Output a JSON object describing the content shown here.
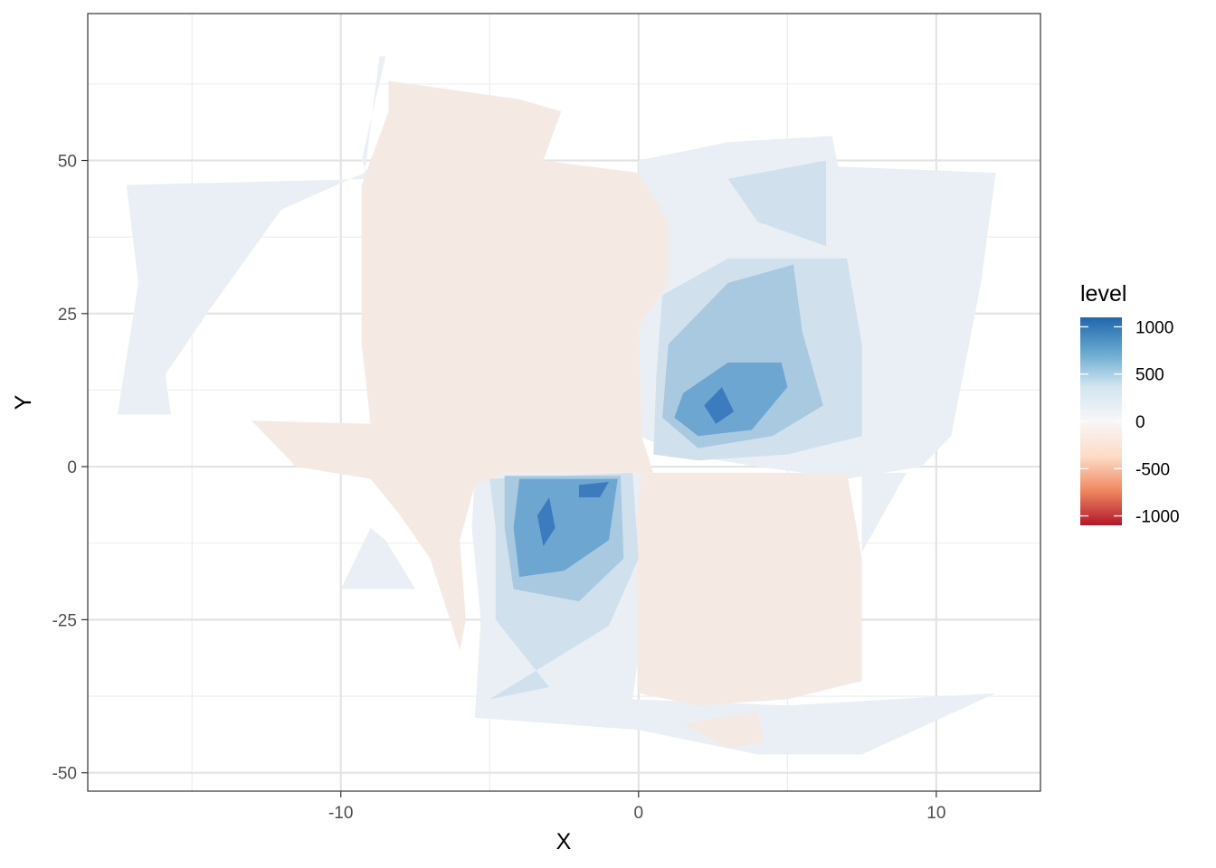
{
  "chart_data": {
    "type": "contour",
    "title": "",
    "xlabel": "X",
    "ylabel": "Y",
    "xlim": [
      -18.5,
      13.5
    ],
    "ylim": [
      -53,
      74
    ],
    "x_ticks": [
      -10,
      0,
      10
    ],
    "x_tick_labels": [
      "-10",
      "0",
      "10"
    ],
    "y_ticks": [
      -50,
      -25,
      0,
      25,
      50
    ],
    "y_tick_labels": [
      "-50",
      "-25",
      "0",
      "25",
      "50"
    ],
    "grid": true,
    "legend": {
      "title": "level",
      "placement": "right",
      "range": [
        -1100,
        1100
      ],
      "breaks": [
        1000,
        500,
        0,
        -500,
        -1000
      ],
      "break_labels": [
        "1000",
        "500",
        "0",
        "-500",
        "-1000"
      ],
      "colors": [
        "#b2182b",
        "#ef8a62",
        "#fddbc7",
        "#f7f7f7",
        "#d1e5f0",
        "#67a9cf",
        "#2166ac"
      ]
    },
    "regions": [
      {
        "name": "level-band-pos-100",
        "level": 100,
        "color": "#e9eff4",
        "points": [
          [
            -17.2,
            46
          ],
          [
            -16.8,
            30
          ],
          [
            -17.5,
            8.5
          ],
          [
            -15.7,
            8.5
          ],
          [
            -15.9,
            15
          ],
          [
            -14.5,
            25
          ],
          [
            -12,
            42
          ],
          [
            -9.2,
            48
          ],
          [
            -8.7,
            67
          ],
          [
            -8.5,
            67
          ],
          [
            -9.3,
            50
          ],
          [
            -9,
            47
          ]
        ]
      },
      {
        "name": "level-band-pos-100",
        "level": 100,
        "color": "#e9eff4",
        "points": [
          [
            0,
            50
          ],
          [
            3,
            53
          ],
          [
            6.5,
            54
          ],
          [
            6.7,
            49
          ],
          [
            12,
            48
          ],
          [
            11.5,
            30
          ],
          [
            10.5,
            5
          ],
          [
            9.5,
            0
          ],
          [
            7,
            -2
          ],
          [
            4,
            0
          ],
          [
            1.5,
            2
          ],
          [
            0,
            5
          ],
          [
            0,
            40
          ]
        ]
      },
      {
        "name": "level-band-pos-100",
        "level": 100,
        "color": "#e9eff4",
        "points": [
          [
            -5.5,
            -1
          ],
          [
            0.2,
            -1
          ],
          [
            0.3,
            -20
          ],
          [
            -0.2,
            -38
          ],
          [
            5,
            -39
          ],
          [
            12,
            -37
          ],
          [
            7.5,
            -47
          ],
          [
            4,
            -47
          ],
          [
            0,
            -43
          ],
          [
            -5.5,
            -41
          ],
          [
            -5.3,
            -25
          ],
          [
            -5.6,
            -10
          ]
        ]
      },
      {
        "name": "level-band-pos-100",
        "level": 100,
        "color": "#e9eff4",
        "points": [
          [
            -10,
            -20
          ],
          [
            -9,
            -10
          ],
          [
            -8.5,
            -12
          ],
          [
            -7.5,
            -20
          ]
        ]
      },
      {
        "name": "level-band-pos-100",
        "level": 100,
        "color": "#e9eff4",
        "points": [
          [
            7.5,
            -1
          ],
          [
            9,
            -1
          ],
          [
            7.5,
            -14
          ]
        ]
      },
      {
        "name": "level-band-neg-100",
        "level": -100,
        "color": "#f5e9e4",
        "points": [
          [
            -8.4,
            63
          ],
          [
            -4,
            60
          ],
          [
            -2.6,
            58
          ],
          [
            -3.2,
            50
          ],
          [
            0,
            48
          ],
          [
            1,
            40
          ],
          [
            1,
            30
          ],
          [
            0,
            23
          ],
          [
            0.1,
            5
          ],
          [
            0.5,
            -1
          ],
          [
            -4.5,
            -1
          ],
          [
            -5.5,
            -3
          ],
          [
            -6,
            -12
          ],
          [
            -5.8,
            -25
          ],
          [
            -6,
            -30
          ],
          [
            -7,
            -15
          ],
          [
            -8,
            -8
          ],
          [
            -9,
            -2
          ],
          [
            -11.5,
            0
          ],
          [
            -13,
            7.5
          ],
          [
            -9,
            7
          ],
          [
            -9.3,
            20
          ],
          [
            -9.3,
            46
          ],
          [
            -8.4,
            58
          ]
        ]
      },
      {
        "name": "level-band-neg-100",
        "level": -100,
        "color": "#f5e9e4",
        "points": [
          [
            0.1,
            -1
          ],
          [
            7,
            -1
          ],
          [
            7.5,
            -15
          ],
          [
            7.5,
            -35
          ],
          [
            5,
            -38
          ],
          [
            2,
            -39
          ],
          [
            0,
            -37
          ],
          [
            -0.1,
            -10
          ]
        ]
      },
      {
        "name": "level-band-neg-100",
        "level": -100,
        "color": "#f5e9e4",
        "points": [
          [
            1.5,
            -42
          ],
          [
            4,
            -40
          ],
          [
            4.2,
            -45
          ],
          [
            3,
            -46
          ]
        ]
      },
      {
        "name": "level-band-pos-250",
        "level": 250,
        "color": "#d0e1ed",
        "points": [
          [
            0.8,
            28
          ],
          [
            3,
            34
          ],
          [
            7,
            34
          ],
          [
            7.5,
            20
          ],
          [
            7.5,
            5
          ],
          [
            5,
            2
          ],
          [
            2,
            1
          ],
          [
            0.5,
            2
          ],
          [
            0.6,
            15
          ]
        ]
      },
      {
        "name": "level-band-pos-250",
        "level": 250,
        "color": "#d0e1ed",
        "points": [
          [
            3,
            47
          ],
          [
            6.3,
            50
          ],
          [
            6.3,
            36
          ],
          [
            4,
            40
          ]
        ]
      },
      {
        "name": "level-band-pos-250",
        "level": 250,
        "color": "#d0e1ed",
        "points": [
          [
            -5,
            -2
          ],
          [
            -0.2,
            -1
          ],
          [
            0,
            -15
          ],
          [
            -1,
            -26
          ],
          [
            -3,
            -32
          ],
          [
            -5,
            -38
          ],
          [
            -3,
            -36
          ],
          [
            -4.8,
            -25
          ],
          [
            -4.8,
            -10
          ]
        ]
      },
      {
        "name": "level-band-pos-450",
        "level": 450,
        "color": "#a9c9e0",
        "points": [
          [
            1,
            20
          ],
          [
            3,
            30
          ],
          [
            5.2,
            33
          ],
          [
            5.5,
            22
          ],
          [
            6.2,
            10
          ],
          [
            4.5,
            5
          ],
          [
            2,
            3
          ],
          [
            0.8,
            8
          ]
        ]
      },
      {
        "name": "level-band-pos-450",
        "level": 450,
        "color": "#a9c9e0",
        "points": [
          [
            -4.5,
            -1.5
          ],
          [
            -0.6,
            -1.5
          ],
          [
            -0.5,
            -15
          ],
          [
            -2,
            -22
          ],
          [
            -4.2,
            -20
          ],
          [
            -4.5,
            -10
          ]
        ]
      },
      {
        "name": "level-band-pos-650",
        "level": 650,
        "color": "#6da6d1",
        "points": [
          [
            1.5,
            12
          ],
          [
            3,
            17
          ],
          [
            4.8,
            17
          ],
          [
            5,
            13
          ],
          [
            3.8,
            6
          ],
          [
            2,
            5
          ],
          [
            1.2,
            8
          ]
        ]
      },
      {
        "name": "level-band-pos-650",
        "level": 650,
        "color": "#6da6d1",
        "points": [
          [
            -4,
            -2
          ],
          [
            -0.7,
            -2
          ],
          [
            -1,
            -12
          ],
          [
            -2.5,
            -17
          ],
          [
            -4,
            -18
          ],
          [
            -4.2,
            -10
          ]
        ]
      },
      {
        "name": "level-band-pos-850",
        "level": 850,
        "color": "#3d7bbf",
        "points": [
          [
            2.2,
            10
          ],
          [
            2.8,
            13
          ],
          [
            3.2,
            9
          ],
          [
            2.6,
            7
          ]
        ]
      },
      {
        "name": "level-band-pos-850",
        "level": 850,
        "color": "#3d7bbf",
        "points": [
          [
            -3,
            -5
          ],
          [
            -2.8,
            -10
          ],
          [
            -3.2,
            -13
          ],
          [
            -3.4,
            -8
          ]
        ]
      },
      {
        "name": "level-band-pos-850",
        "level": 850,
        "color": "#3d7bbf",
        "points": [
          [
            -2,
            -3
          ],
          [
            -1,
            -2.5
          ],
          [
            -1.3,
            -5
          ],
          [
            -2,
            -5
          ]
        ]
      }
    ]
  }
}
